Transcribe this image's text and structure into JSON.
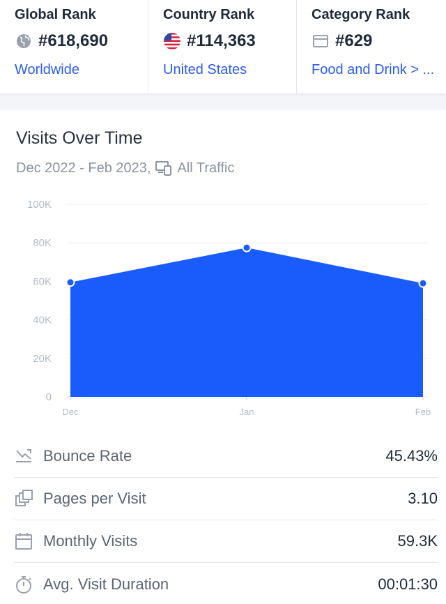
{
  "ranks": [
    {
      "title": "Global Rank",
      "value": "#618,690",
      "link": "Worldwide",
      "icon": "globe-icon"
    },
    {
      "title": "Country Rank",
      "value": "#114,363",
      "link": "United States",
      "icon": "us-flag-icon"
    },
    {
      "title": "Category Rank",
      "value": "#629",
      "link": "Food and Drink > ...",
      "icon": "category-icon"
    }
  ],
  "visits": {
    "title": "Visits Over Time",
    "date_range": "Dec 2022 - Feb 2023,",
    "traffic_type": "All Traffic"
  },
  "chart_data": {
    "type": "area",
    "categories": [
      "Dec",
      "Jan",
      "Feb"
    ],
    "values": [
      59500,
      77500,
      59000
    ],
    "ylim": [
      0,
      100000
    ],
    "yticks": [
      "0",
      "20K",
      "40K",
      "60K",
      "80K",
      "100K"
    ],
    "grid": true,
    "color": "#1a5cfb"
  },
  "metrics": [
    {
      "label": "Bounce Rate",
      "value": "45.43%",
      "icon": "bounce-icon"
    },
    {
      "label": "Pages per Visit",
      "value": "3.10",
      "icon": "pages-icon"
    },
    {
      "label": "Monthly Visits",
      "value": "59.3K",
      "icon": "calendar-icon"
    },
    {
      "label": "Avg. Visit Duration",
      "value": "00:01:30",
      "icon": "stopwatch-icon"
    }
  ]
}
